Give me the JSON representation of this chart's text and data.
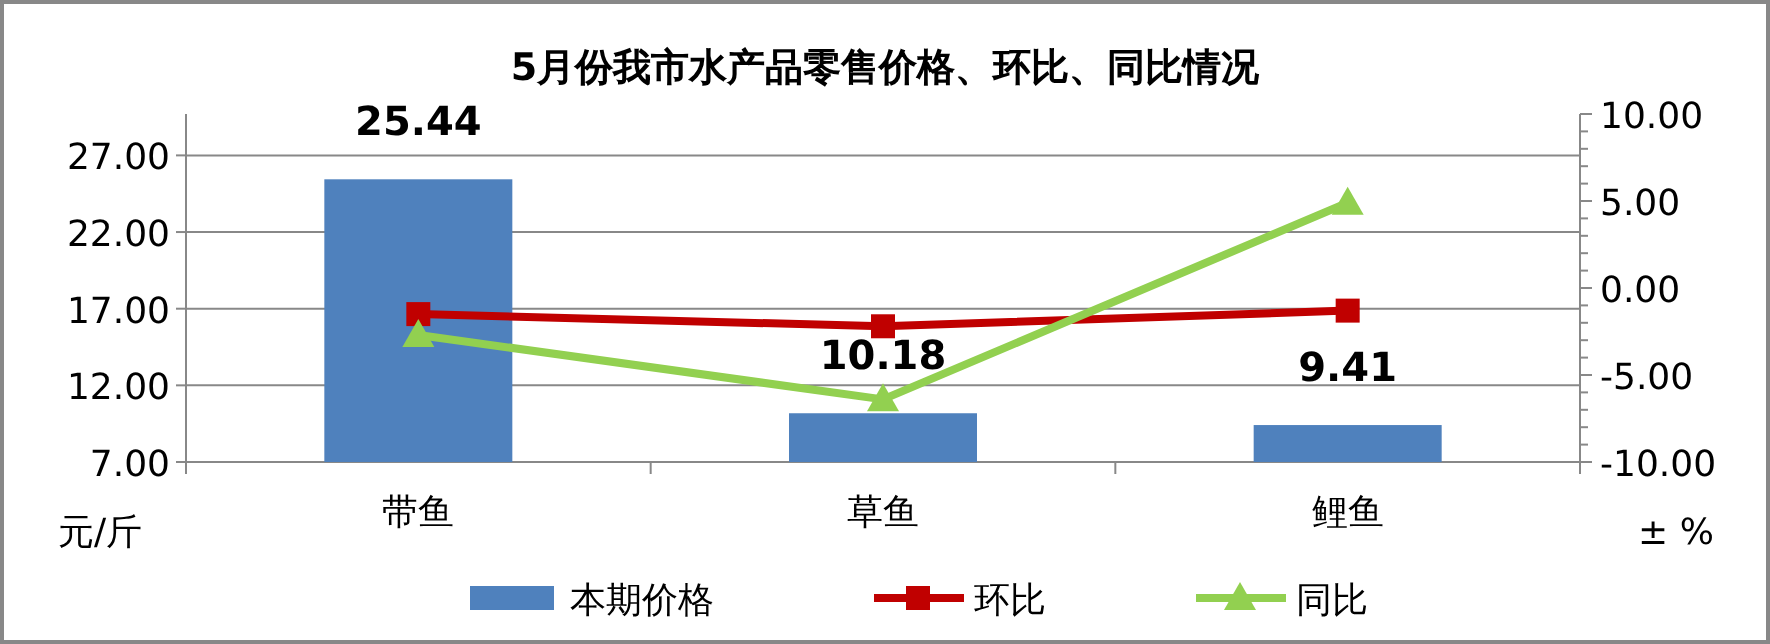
{
  "chart_data": {
    "type": "bar",
    "title": "5月份我市水产品零售价格、环比、同比情况",
    "ylabel": "元/斤",
    "y2label": "± %",
    "categories": [
      "带鱼",
      "草鱼",
      "鲤鱼"
    ],
    "series": [
      {
        "name": "本期价格",
        "color": "#4f81bd",
        "values": [
          25.44,
          10.18,
          9.41
        ],
        "value_labels": [
          "25.44",
          "10.18",
          "9.41"
        ]
      },
      {
        "name": "环比",
        "type": "line",
        "axis": "y2",
        "color": "#c00000",
        "marker": "square",
        "values": [
          -1.5,
          -2.2,
          -1.3
        ]
      },
      {
        "name": "同比",
        "type": "line",
        "axis": "y2",
        "color": "#92d050",
        "marker": "triangle",
        "values": [
          -2.7,
          -6.4,
          4.9
        ]
      }
    ],
    "ylim": [
      7,
      29.7
    ],
    "yticks": [
      {
        "value": 7,
        "label": "7.00"
      },
      {
        "value": 12,
        "label": "12.00"
      },
      {
        "value": 17,
        "label": "17.00"
      },
      {
        "value": 22,
        "label": "22.00"
      },
      {
        "value": 27,
        "label": "27.00"
      }
    ],
    "y2lim": [
      -10,
      10
    ],
    "y2ticks": [
      {
        "value": -10,
        "label": "-10.00"
      },
      {
        "value": -5,
        "label": "-5.00"
      },
      {
        "value": 0,
        "label": "0.00"
      },
      {
        "value": 5,
        "label": "5.00"
      },
      {
        "value": 10,
        "label": "10.00"
      }
    ],
    "grid": "y",
    "legend": "bottom"
  }
}
